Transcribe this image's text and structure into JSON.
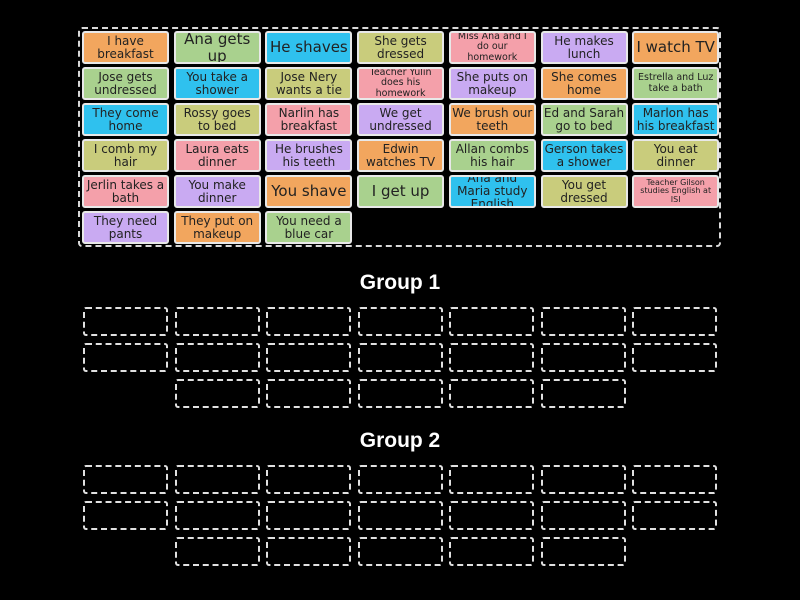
{
  "cards": [
    {
      "text": "I have breakfast",
      "color": "orange",
      "size": "md"
    },
    {
      "text": "Ana gets up",
      "color": "green",
      "size": "lg"
    },
    {
      "text": "He shaves",
      "color": "blue",
      "size": "lg"
    },
    {
      "text": "She gets dressed",
      "color": "olive",
      "size": "md"
    },
    {
      "text": "Miss Ana and I do our homework",
      "color": "pink",
      "size": "sm"
    },
    {
      "text": "He makes lunch",
      "color": "purple",
      "size": "md"
    },
    {
      "text": "I watch TV",
      "color": "orange",
      "size": "lg"
    },
    {
      "text": "Jose gets undressed",
      "color": "green",
      "size": "md"
    },
    {
      "text": "You take a shower",
      "color": "blue",
      "size": "md"
    },
    {
      "text": "Jose Nery wants a tie",
      "color": "olive",
      "size": "md"
    },
    {
      "text": "Teacher Yulin does his homework",
      "color": "pink",
      "size": "sm"
    },
    {
      "text": "She puts on makeup",
      "color": "purple",
      "size": "md"
    },
    {
      "text": "She comes home",
      "color": "orange",
      "size": "md"
    },
    {
      "text": "Estrella and Luz take a bath",
      "color": "green",
      "size": "sm"
    },
    {
      "text": "They come home",
      "color": "blue",
      "size": "md"
    },
    {
      "text": "Rossy goes to bed",
      "color": "olive",
      "size": "md"
    },
    {
      "text": "Narlin has breakfast",
      "color": "pink",
      "size": "md"
    },
    {
      "text": "We get undressed",
      "color": "purple",
      "size": "md"
    },
    {
      "text": "We brush our teeth",
      "color": "orange",
      "size": "md"
    },
    {
      "text": "Ed and Sarah go to bed",
      "color": "green",
      "size": "md"
    },
    {
      "text": "Marlon has his breakfast",
      "color": "blue",
      "size": "md"
    },
    {
      "text": "I comb my hair",
      "color": "olive",
      "size": "md"
    },
    {
      "text": "Laura eats dinner",
      "color": "pink",
      "size": "md"
    },
    {
      "text": "He brushes his teeth",
      "color": "purple",
      "size": "md"
    },
    {
      "text": "Edwin watches TV",
      "color": "orange",
      "size": "md"
    },
    {
      "text": "Allan combs his hair",
      "color": "green",
      "size": "md"
    },
    {
      "text": "Gerson takes a shower",
      "color": "blue",
      "size": "md"
    },
    {
      "text": "You eat dinner",
      "color": "olive",
      "size": "md"
    },
    {
      "text": "Jerlin takes a bath",
      "color": "pink",
      "size": "md"
    },
    {
      "text": "You make dinner",
      "color": "purple",
      "size": "md"
    },
    {
      "text": "You shave",
      "color": "orange",
      "size": "lg"
    },
    {
      "text": "I get up",
      "color": "green",
      "size": "lg"
    },
    {
      "text": "Ana and Maria study English",
      "color": "blue",
      "size": "md"
    },
    {
      "text": "You get dressed",
      "color": "olive",
      "size": "md"
    },
    {
      "text": "Teacher Gilson studies English at ISI",
      "color": "pink",
      "size": "xs"
    },
    {
      "text": "They need pants",
      "color": "purple",
      "size": "md"
    },
    {
      "text": "They put on makeup",
      "color": "orange",
      "size": "md"
    },
    {
      "text": "You need a blue car",
      "color": "green",
      "size": "md"
    }
  ],
  "groups": [
    {
      "title": "Group 1",
      "slot_rows": [
        7,
        7,
        5
      ]
    },
    {
      "title": "Group 2",
      "slot_rows": [
        7,
        7,
        5
      ]
    }
  ]
}
